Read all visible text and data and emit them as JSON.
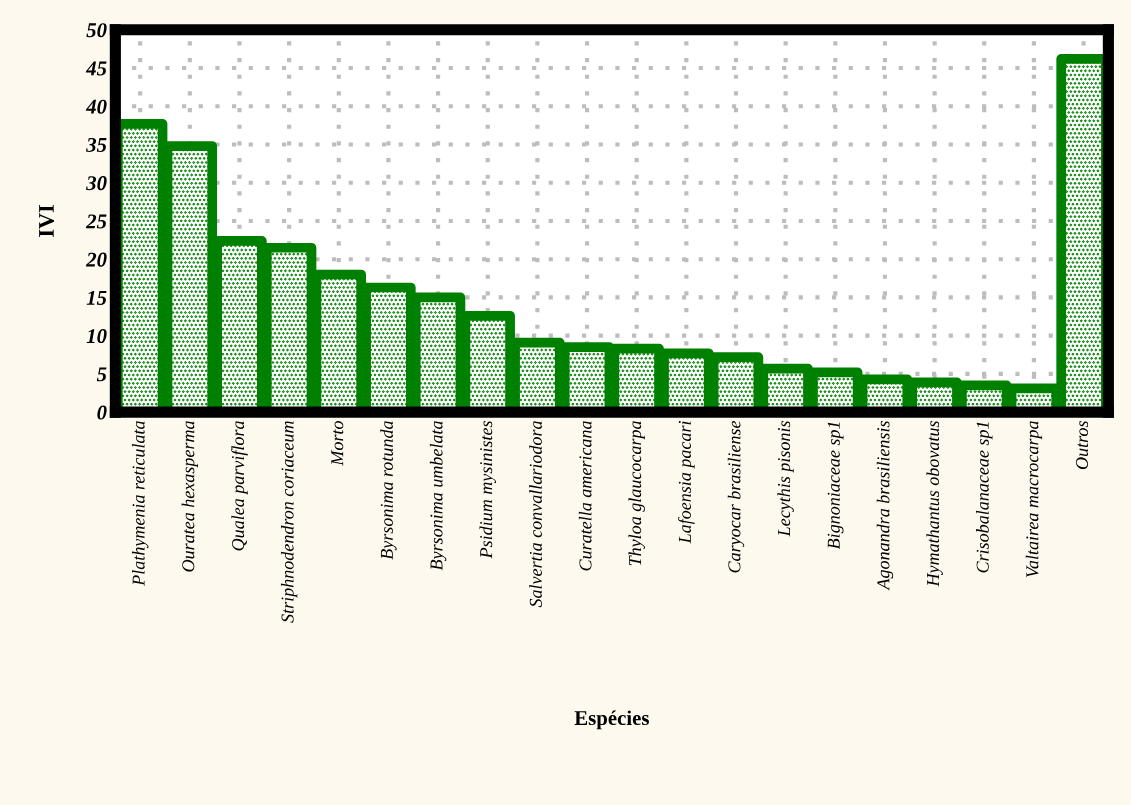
{
  "chart_data": {
    "type": "bar",
    "xlabel": "Espécies",
    "ylabel": "IVI",
    "categories": [
      "Plathymenia reticulata",
      "Ouratea hexasperma",
      "Qualea parviflora",
      "Striphnodendron coriaceum",
      "Morto",
      "Byrsonima rotunda",
      "Byrsonima umbelata",
      "Psidium mysinistes",
      "Salvertia convallariodora",
      "Curatella americana",
      "Thyloa glaucocarpa",
      "Lafoensia pacari",
      "Caryocar brasiliense",
      "Lecythis pisonis",
      "Bignoniaceae sp1",
      "Agonandra brasiliensis",
      "Hymathantus obovatus",
      "Crisobalanaceae sp1",
      "Valtairea macrocarpa",
      "Outros"
    ],
    "values": [
      37.7,
      34.8,
      22.4,
      21.5,
      18.0,
      16.3,
      15.0,
      12.6,
      9.1,
      8.5,
      8.3,
      7.7,
      7.2,
      5.7,
      5.2,
      4.3,
      3.9,
      3.5,
      3.1,
      46.2
    ],
    "color": "#008000",
    "ylim": [
      0,
      50
    ],
    "yticks": [
      0,
      5,
      10,
      15,
      20,
      25,
      30,
      35,
      40,
      45,
      50
    ],
    "grid": true
  }
}
